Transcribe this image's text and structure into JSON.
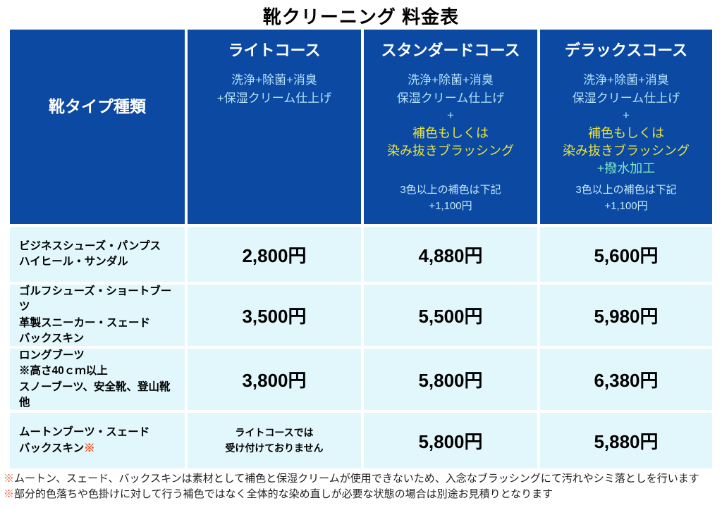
{
  "title": "靴クリーニング 料金表",
  "colors": {
    "header_bg": "#0b49a3",
    "cell_bg": "#e2f7fb",
    "desc_text": "#b5e3f7",
    "highlight_yellow": "#e7e33f",
    "highlight_mint": "#7ceac5",
    "note_marker_orange": "#f15a29"
  },
  "header": {
    "row_label": "靴タイプ種類",
    "courses": [
      {
        "name": "ライトコース",
        "line1": "洗浄+除菌+消臭",
        "line2": "+保湿クリーム仕上げ"
      },
      {
        "name": "スタンダードコース",
        "line1": "洗浄+除菌+消臭",
        "line2": "保湿クリーム仕上げ",
        "plus": "+",
        "extra1": "補色もしくは",
        "extra2": "染み抜きブラッシング",
        "note1": "3色以上の補色は下記",
        "note2": "+1,100円"
      },
      {
        "name": "デラックスコース",
        "line1": "洗浄+除菌+消臭",
        "line2": "保湿クリーム仕上げ",
        "plus": "+",
        "extra1": "補色もしくは",
        "extra2": "染み抜きブラッシング",
        "extra3": "+撥水加工",
        "note1": "3色以上の補色は下記",
        "note2": "+1,100円"
      }
    ]
  },
  "rows": [
    {
      "label_lines": [
        "ビジネスシューズ・パンプス",
        "ハイヒール・サンダル"
      ],
      "prices": [
        "2,800円",
        "4,880円",
        "5,600円"
      ]
    },
    {
      "label_lines": [
        "ゴルフシューズ・ショートブーツ",
        "革製スニーカー・スェード",
        "バックスキン"
      ],
      "prices": [
        "3,500円",
        "5,500円",
        "5,980円"
      ]
    },
    {
      "label_lines": [
        "ロングブーツ",
        "※高さ40ｃｍ以上",
        "スノーブーツ、安全靴、登山靴他"
      ],
      "prices": [
        "3,800円",
        "5,800円",
        "6,380円"
      ]
    },
    {
      "label_lines": [
        "ムートンブーツ・スェード",
        "バックスキン"
      ],
      "label_note_marker": "※",
      "light_unavailable": [
        "ライトコースでは",
        "受け付けておりません"
      ],
      "prices": [
        "5,800円",
        "5,880円"
      ]
    }
  ],
  "footnotes": [
    {
      "marker": "※",
      "text": "ムートン、スェード、バックスキンは素材として補色と保湿クリームが使用できないため、入念なブラッシングにて汚れやシミ落としを行います"
    },
    {
      "marker": "※",
      "text": "部分的色落ちや色掛けに対して行う補色ではなく全体的な染め直しが必要な状態の場合は別途お見積りとなります"
    }
  ]
}
